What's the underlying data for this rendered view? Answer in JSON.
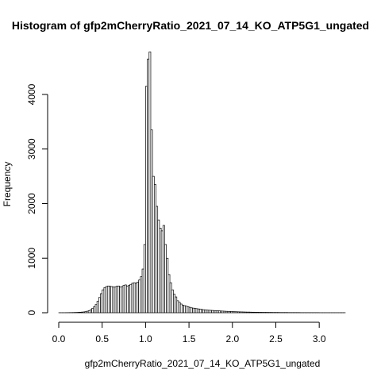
{
  "chart_data": {
    "type": "bar",
    "title": "Histogram of gfp2mCherryRatio_2021_07_14_KO_ATP5G1_ungated",
    "xlabel": "gfp2mCherryRatio_2021_07_14_KO_ATP5G1_ungated",
    "ylabel": "Frequency",
    "xlim": [
      0,
      3.3
    ],
    "ylim": [
      0,
      4800
    ],
    "bin_width": 0.02,
    "x_ticks": [
      0.0,
      0.5,
      1.0,
      1.5,
      2.0,
      2.5,
      3.0
    ],
    "x_tick_labels": [
      "0.0",
      "0.5",
      "1.0",
      "1.5",
      "2.0",
      "2.5",
      "3.0"
    ],
    "y_ticks": [
      0,
      1000,
      2000,
      3000,
      4000
    ],
    "y_tick_labels": [
      "0",
      "1000",
      "2000",
      "3000",
      "4000"
    ],
    "grid": false,
    "bin_starts": [
      0.0,
      0.02,
      0.04,
      0.06,
      0.08,
      0.1,
      0.12,
      0.14,
      0.16,
      0.18,
      0.2,
      0.22,
      0.24,
      0.26,
      0.28,
      0.3,
      0.32,
      0.34,
      0.36,
      0.38,
      0.4,
      0.42,
      0.44,
      0.46,
      0.48,
      0.5,
      0.52,
      0.54,
      0.56,
      0.58,
      0.6,
      0.62,
      0.64,
      0.66,
      0.68,
      0.7,
      0.72,
      0.74,
      0.76,
      0.78,
      0.8,
      0.82,
      0.84,
      0.86,
      0.88,
      0.9,
      0.92,
      0.94,
      0.96,
      0.98,
      1.0,
      1.02,
      1.04,
      1.06,
      1.08,
      1.1,
      1.12,
      1.14,
      1.16,
      1.18,
      1.2,
      1.22,
      1.24,
      1.26,
      1.28,
      1.3,
      1.32,
      1.34,
      1.36,
      1.38,
      1.4,
      1.42,
      1.44,
      1.46,
      1.48,
      1.5,
      1.52,
      1.54,
      1.56,
      1.58,
      1.6,
      1.62,
      1.64,
      1.66,
      1.68,
      1.7,
      1.72,
      1.74,
      1.76,
      1.78,
      1.8,
      1.82,
      1.84,
      1.86,
      1.88,
      1.9,
      1.92,
      1.94,
      1.96,
      1.98,
      2.0,
      2.02,
      2.04,
      2.06,
      2.08,
      2.1,
      2.12,
      2.14,
      2.16,
      2.18,
      2.2,
      2.22,
      2.24,
      2.26,
      2.28,
      2.3,
      2.32,
      2.34,
      2.36,
      2.38,
      2.4,
      2.42,
      2.44,
      2.46,
      2.48,
      2.5,
      2.52,
      2.54,
      2.56,
      2.58,
      2.6,
      2.62,
      2.64,
      2.66,
      2.68,
      2.7,
      2.72,
      2.74,
      2.76,
      2.78,
      2.8,
      2.82,
      2.84,
      2.86,
      2.88,
      2.9,
      2.92,
      2.94,
      2.96,
      2.98,
      3.0,
      3.02,
      3.04,
      3.06,
      3.08,
      3.1,
      3.12,
      3.14,
      3.16,
      3.18,
      3.2,
      3.22,
      3.24,
      3.26,
      3.28
    ],
    "counts": [
      1,
      1,
      1,
      1,
      2,
      2,
      3,
      3,
      4,
      5,
      6,
      8,
      10,
      12,
      15,
      20,
      28,
      38,
      55,
      80,
      110,
      150,
      210,
      280,
      350,
      420,
      460,
      480,
      490,
      485,
      480,
      470,
      475,
      485,
      490,
      470,
      480,
      500,
      510,
      490,
      500,
      520,
      540,
      550,
      540,
      560,
      600,
      660,
      800,
      1250,
      4150,
      4650,
      4780,
      3350,
      2500,
      2350,
      1950,
      1700,
      1550,
      1500,
      1600,
      1250,
      1000,
      700,
      550,
      420,
      340,
      290,
      220,
      190,
      160,
      140,
      130,
      120,
      110,
      100,
      90,
      85,
      80,
      75,
      70,
      65,
      60,
      55,
      50,
      48,
      46,
      44,
      42,
      40,
      38,
      36,
      34,
      32,
      30,
      28,
      26,
      25,
      24,
      22,
      20,
      19,
      18,
      17,
      16,
      15,
      14,
      13,
      12,
      12,
      11,
      10,
      10,
      9,
      9,
      8,
      8,
      7,
      7,
      7,
      6,
      6,
      6,
      5,
      5,
      5,
      5,
      4,
      4,
      4,
      4,
      4,
      3,
      3,
      3,
      3,
      3,
      3,
      3,
      2,
      2,
      2,
      2,
      2,
      2,
      2,
      2,
      2,
      2,
      2,
      1,
      1,
      1,
      1,
      1,
      1,
      1,
      1,
      1,
      1,
      1,
      1,
      1,
      1,
      1,
      1,
      1,
      1,
      1
    ]
  }
}
